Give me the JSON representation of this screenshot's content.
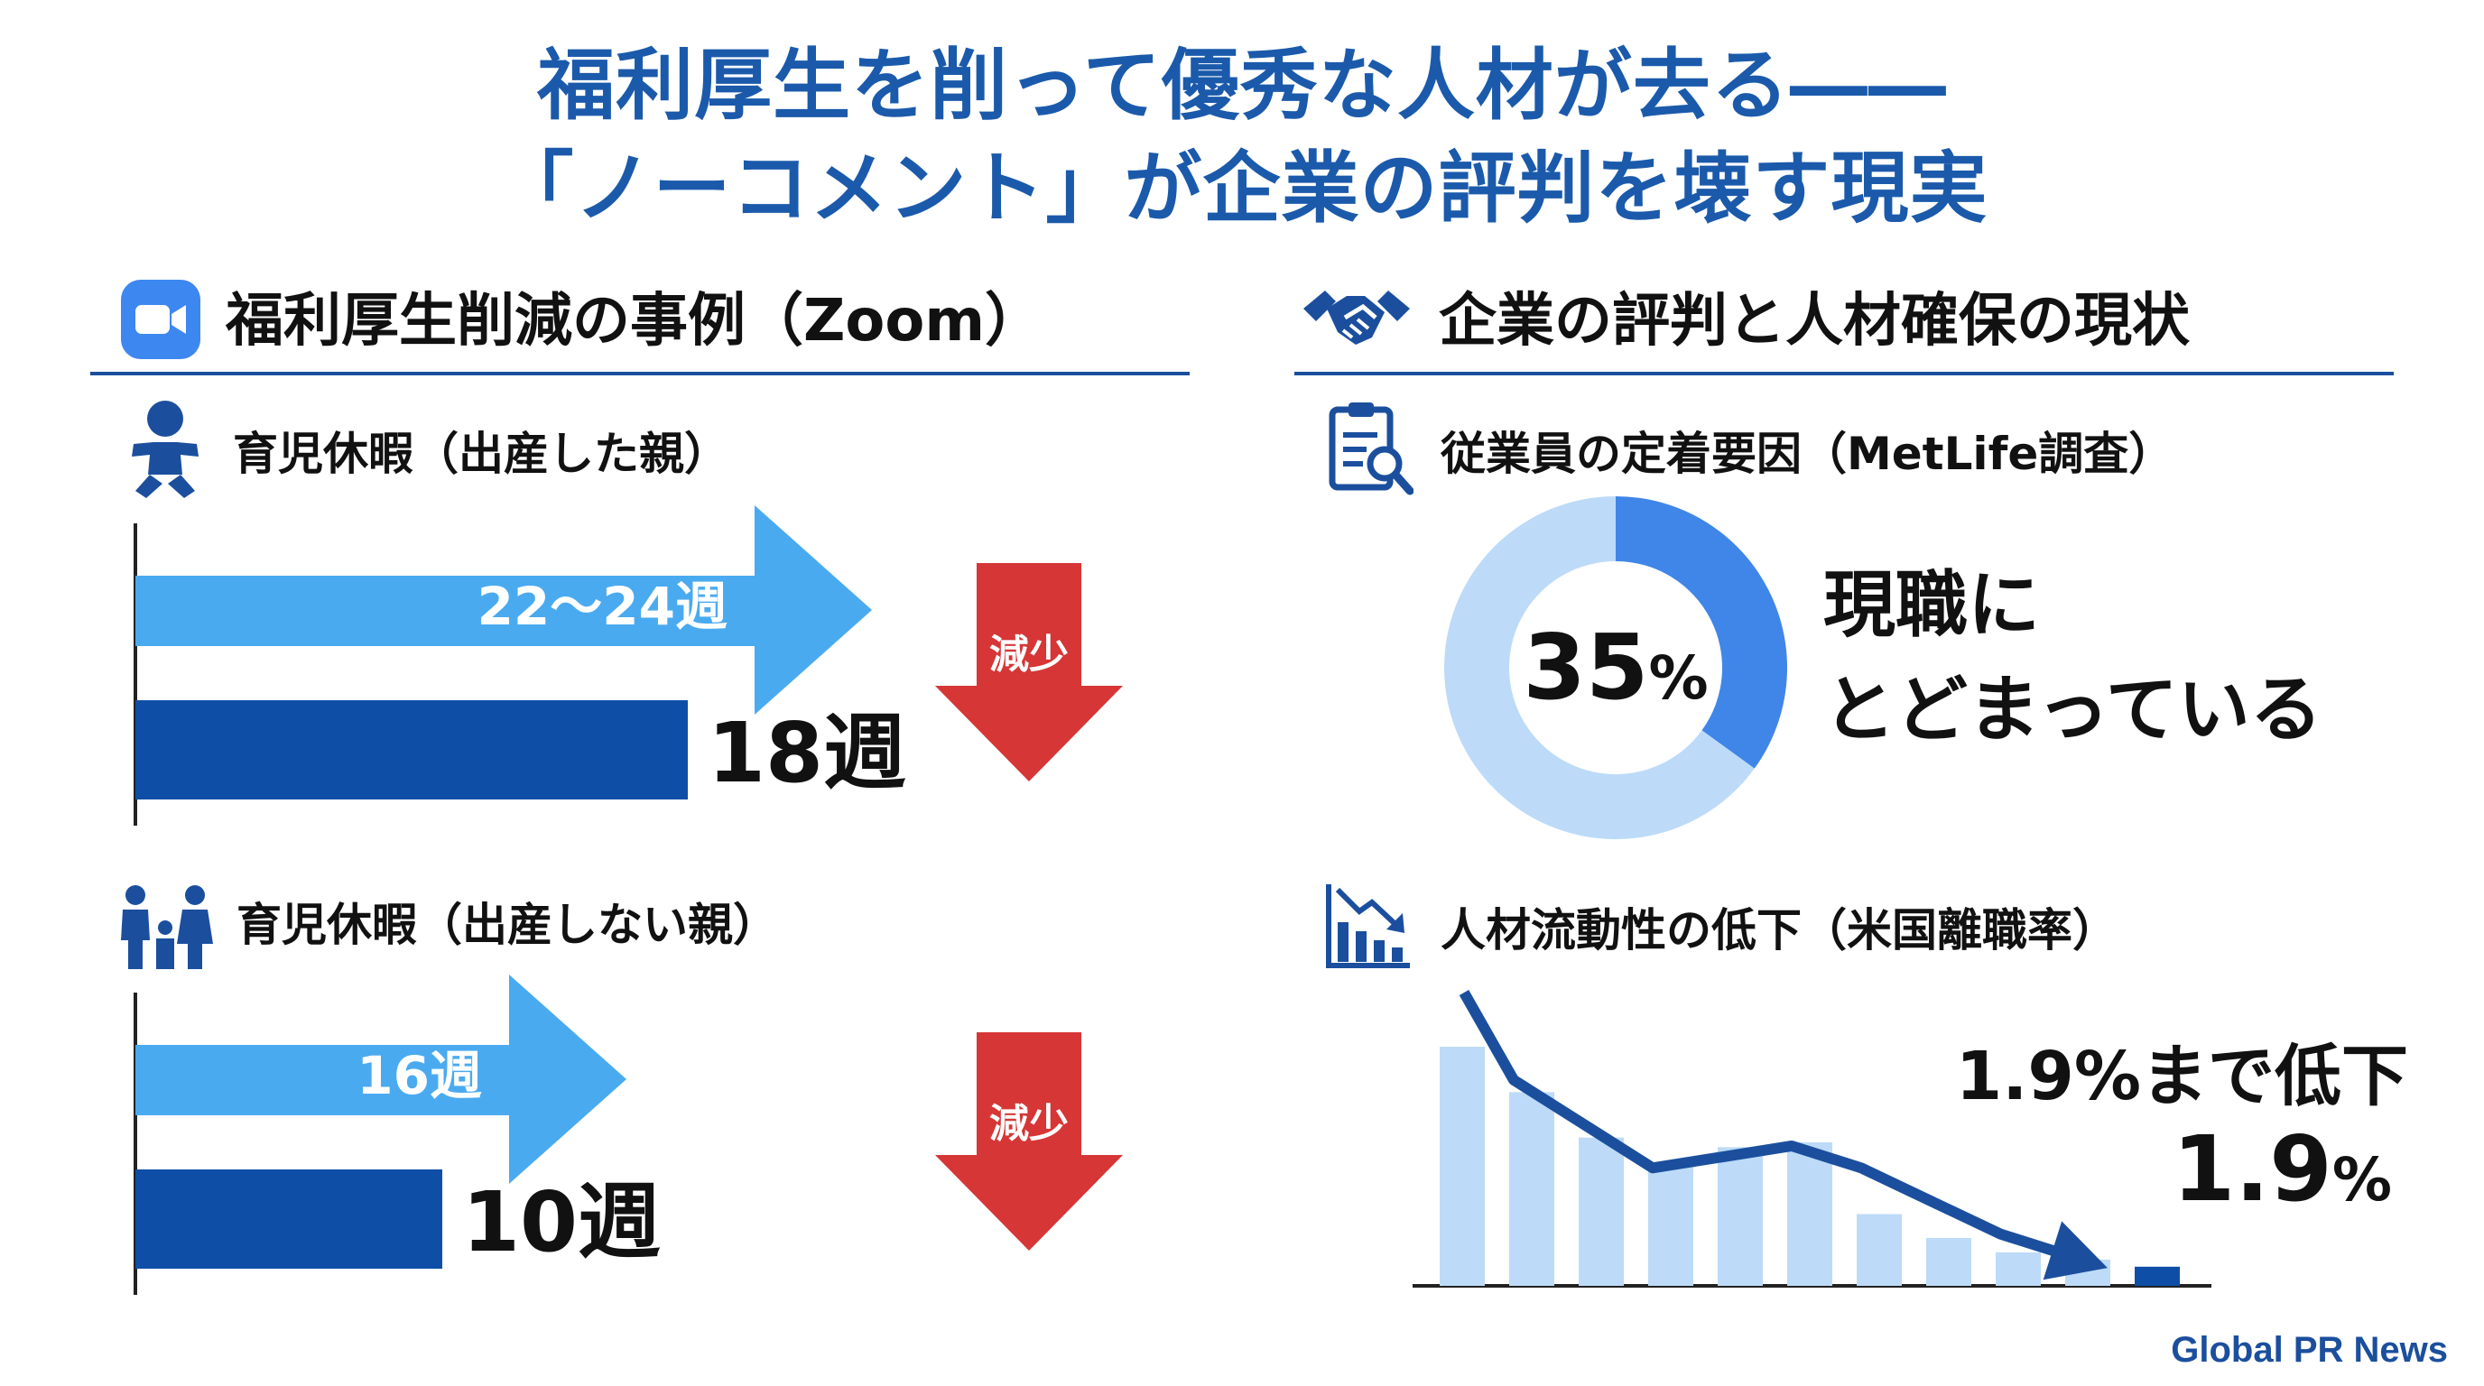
{
  "title": {
    "line1": "福利厚生を削って優秀な人材が去る――",
    "line2": "「ノーコメント」が企業の評判を壊す現実"
  },
  "left": {
    "section_title": "福利厚生削減の事例（Zoom）",
    "icon": "zoom-video-icon"
  },
  "right": {
    "section_title": "企業の評判と人材確保の現状",
    "icon": "handshake-icon"
  },
  "chart_data": [
    {
      "type": "bar",
      "title": "育児休暇（出産した親）",
      "icon": "baby-icon",
      "bars": [
        {
          "label": "22〜24週",
          "value": 24,
          "range": [
            22,
            24
          ],
          "color": "#4aaaf0"
        },
        {
          "label": "18週",
          "value": 18,
          "color": "#0e4ea6"
        }
      ],
      "badge": "減少",
      "arrow_color": "#d63636"
    },
    {
      "type": "bar",
      "title": "育児休暇（出産しない親）",
      "icon": "family-icon",
      "bars": [
        {
          "label": "16週",
          "value": 16,
          "color": "#4aaaf0"
        },
        {
          "label": "10週",
          "value": 10,
          "color": "#0e4ea6"
        }
      ],
      "badge": "減少",
      "arrow_color": "#d63636"
    },
    {
      "type": "pie",
      "title": "従業員の定着要因（MetLife調査）",
      "icon": "clipboard-search-icon",
      "slices": [
        {
          "label": "現職にとどまっている",
          "value": 35,
          "color": "#3f86e8"
        },
        {
          "label": "",
          "value": 65,
          "color": "#bddbf8"
        }
      ],
      "center_value": "35",
      "center_unit": "%",
      "caption_line1": "現職に",
      "caption_line2": "とどまっている"
    },
    {
      "type": "bar",
      "title": "人材流動性の低下（米国離職率）",
      "icon": "declining-chart-icon",
      "values": [
        1.0,
        0.81,
        0.62,
        0.5,
        0.58,
        0.6,
        0.3,
        0.2,
        0.14,
        0.11,
        0.08
      ],
      "trend": [
        1.3,
        1.1,
        0.9,
        0.7,
        0.75,
        0.8,
        0.7,
        0.55,
        0.4,
        0.3
      ],
      "bar_color": "#bddbf8",
      "last_bar_color": "#0e4ea6",
      "trend_color": "#1b4f9e",
      "annotation": "1.9%まで低下",
      "value_label": "1.9",
      "value_unit": "%"
    }
  ],
  "footer": {
    "brand": "Global PR News"
  }
}
